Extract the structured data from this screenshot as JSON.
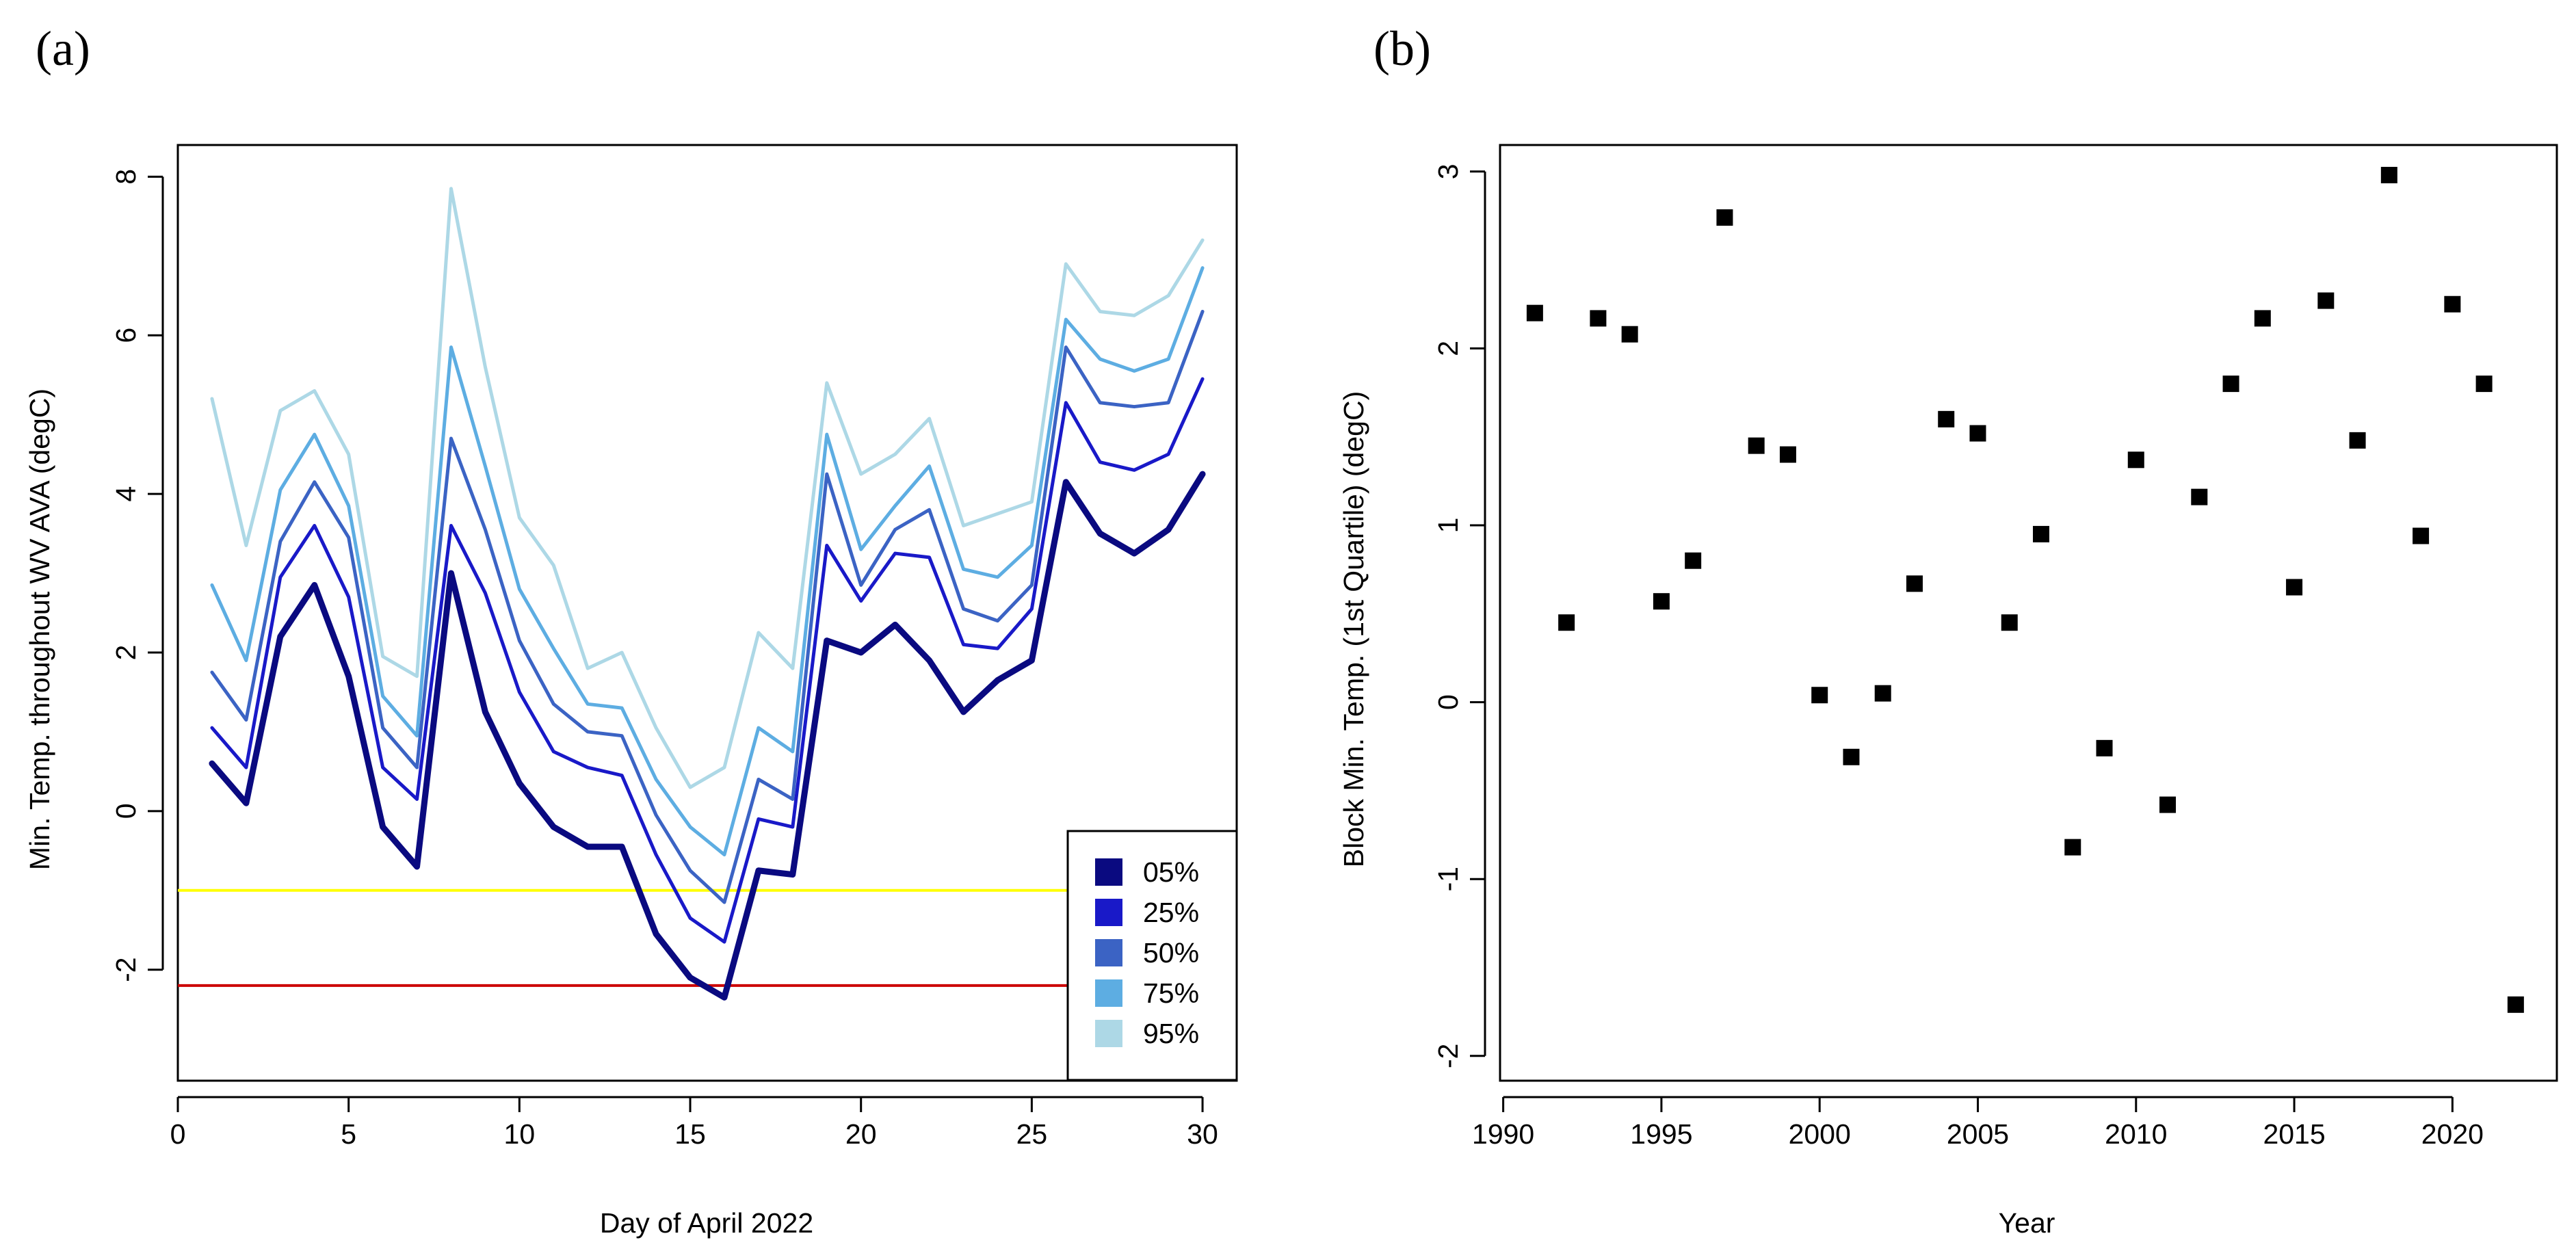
{
  "chart_data": [
    {
      "panel_label": "(a)",
      "type": "line",
      "xlabel": "Day of April 2022",
      "ylabel": "Min. Temp. throughout WV AVA (degC)",
      "xlim": [
        0,
        31
      ],
      "ylim": [
        -3.4,
        8.4
      ],
      "xticks": [
        0,
        5,
        10,
        15,
        20,
        25,
        30
      ],
      "yticks": [
        -2,
        0,
        2,
        4,
        6,
        8
      ],
      "grid": false,
      "legend_position": "bottom-right",
      "x": [
        1,
        2,
        3,
        4,
        5,
        6,
        7,
        8,
        9,
        10,
        11,
        12,
        13,
        14,
        15,
        16,
        17,
        18,
        19,
        20,
        21,
        22,
        23,
        24,
        25,
        26,
        27,
        28,
        29,
        30
      ],
      "series": [
        {
          "name": "95%",
          "color": "#ADD8E6",
          "values": [
            5.2,
            3.35,
            5.05,
            5.3,
            4.5,
            1.95,
            1.7,
            7.85,
            5.6,
            3.7,
            3.1,
            1.8,
            2.0,
            1.05,
            0.3,
            0.55,
            2.25,
            1.8,
            5.4,
            4.25,
            4.5,
            4.95,
            3.6,
            3.75,
            3.9,
            6.9,
            6.3,
            6.25,
            6.5,
            7.2
          ]
        },
        {
          "name": "75%",
          "color": "#5DADE2",
          "values": [
            2.85,
            1.9,
            4.05,
            4.75,
            3.85,
            1.45,
            0.95,
            5.85,
            4.35,
            2.8,
            2.05,
            1.35,
            1.3,
            0.4,
            -0.2,
            -0.55,
            1.05,
            0.75,
            4.75,
            3.3,
            3.85,
            4.35,
            3.05,
            2.95,
            3.35,
            6.2,
            5.7,
            5.55,
            5.7,
            6.85
          ]
        },
        {
          "name": "50%",
          "color": "#3B63C4",
          "values": [
            1.75,
            1.15,
            3.4,
            4.15,
            3.45,
            1.05,
            0.55,
            4.7,
            3.55,
            2.15,
            1.35,
            1.0,
            0.95,
            -0.05,
            -0.75,
            -1.15,
            0.4,
            0.15,
            4.25,
            2.85,
            3.55,
            3.8,
            2.55,
            2.4,
            2.85,
            5.85,
            5.15,
            5.1,
            5.15,
            6.3
          ]
        },
        {
          "name": "25%",
          "color": "#1919C8",
          "values": [
            1.05,
            0.55,
            2.95,
            3.6,
            2.7,
            0.55,
            0.15,
            3.6,
            2.75,
            1.5,
            0.75,
            0.55,
            0.45,
            -0.55,
            -1.35,
            -1.65,
            -0.1,
            -0.2,
            3.35,
            2.65,
            3.25,
            3.2,
            2.1,
            2.05,
            2.55,
            5.15,
            4.4,
            4.3,
            4.5,
            5.45
          ]
        },
        {
          "name": "05%",
          "color": "#0A0A80",
          "values": [
            0.6,
            0.1,
            2.2,
            2.85,
            1.7,
            -0.2,
            -0.7,
            3.0,
            1.25,
            0.35,
            -0.2,
            -0.45,
            -0.45,
            -1.55,
            -2.1,
            -2.35,
            -0.75,
            -0.8,
            2.15,
            2.0,
            2.35,
            1.9,
            1.25,
            1.65,
            1.9,
            4.15,
            3.5,
            3.25,
            3.55,
            4.25
          ]
        }
      ],
      "reference_lines": [
        {
          "y": -1.0,
          "color": "#FFFF00"
        },
        {
          "y": -2.2,
          "color": "#CC0000"
        }
      ]
    },
    {
      "panel_label": "(b)",
      "type": "scatter",
      "xlabel": "Year",
      "ylabel": "Block Min. Temp. (1st Quartile) (degC)",
      "xlim": [
        1989.9,
        2023.3
      ],
      "ylim": [
        -2.14,
        3.15
      ],
      "xticks": [
        1990,
        1995,
        2000,
        2005,
        2010,
        2015,
        2020
      ],
      "yticks": [
        -2,
        -1,
        0,
        1,
        2,
        3
      ],
      "grid": false,
      "marker_color": "#000000",
      "x": [
        1991,
        1992,
        1993,
        1994,
        1995,
        1996,
        1997,
        1998,
        1999,
        2000,
        2001,
        2002,
        2003,
        2004,
        2005,
        2006,
        2007,
        2008,
        2009,
        2010,
        2011,
        2012,
        2013,
        2014,
        2015,
        2016,
        2017,
        2018,
        2019,
        2020,
        2021,
        2022
      ],
      "y": [
        2.2,
        0.45,
        2.17,
        2.08,
        0.57,
        0.8,
        2.74,
        1.45,
        1.4,
        0.04,
        -0.31,
        0.05,
        0.67,
        1.6,
        1.52,
        0.45,
        0.95,
        -0.82,
        -0.26,
        1.37,
        -0.58,
        1.16,
        1.8,
        2.17,
        0.65,
        2.27,
        1.48,
        2.98,
        0.94,
        2.25,
        1.8,
        -1.71
      ]
    }
  ]
}
